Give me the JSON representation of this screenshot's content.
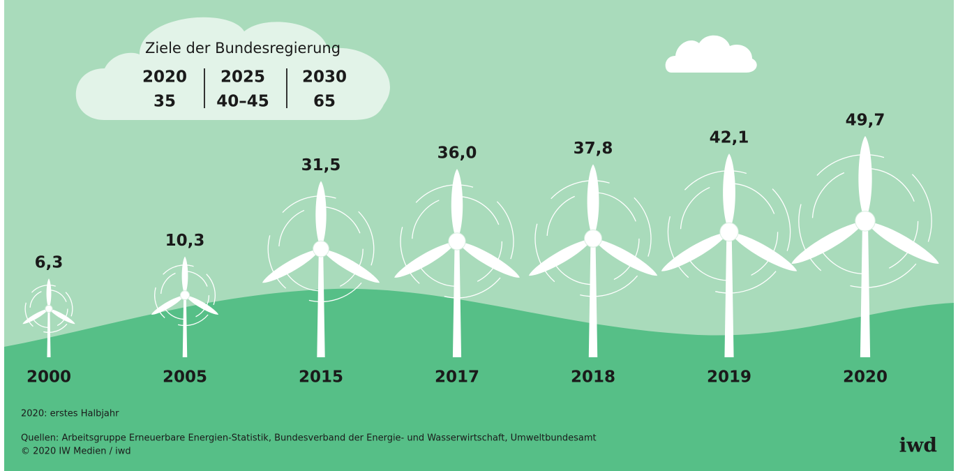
{
  "chart_data": {
    "type": "pictograph",
    "categories": [
      "2000",
      "2005",
      "2015",
      "2017",
      "2018",
      "2019",
      "2020"
    ],
    "values": [
      6.3,
      10.3,
      31.5,
      36.0,
      37.8,
      42.1,
      49.7
    ],
    "value_labels": [
      "6,3",
      "10,3",
      "31,5",
      "36,0",
      "37,8",
      "42,1",
      "49,7"
    ],
    "color": "#ffffff",
    "targets": {
      "title": "Ziele der Bundesregierung",
      "columns": [
        {
          "year": "2020",
          "value": "35"
        },
        {
          "year": "2025",
          "value": "40–45"
        },
        {
          "year": "2030",
          "value": "65"
        }
      ]
    },
    "note": "2020: erstes Halbjahr",
    "source": "Quellen: Arbeitsgruppe Erneuerbare Energien-Statistik, Bundesverband der Energie- und Wasserwirtschaft, Umweltbundesamt",
    "copyright": "© 2020 IW Medien / iwd",
    "logo": "iwd"
  }
}
